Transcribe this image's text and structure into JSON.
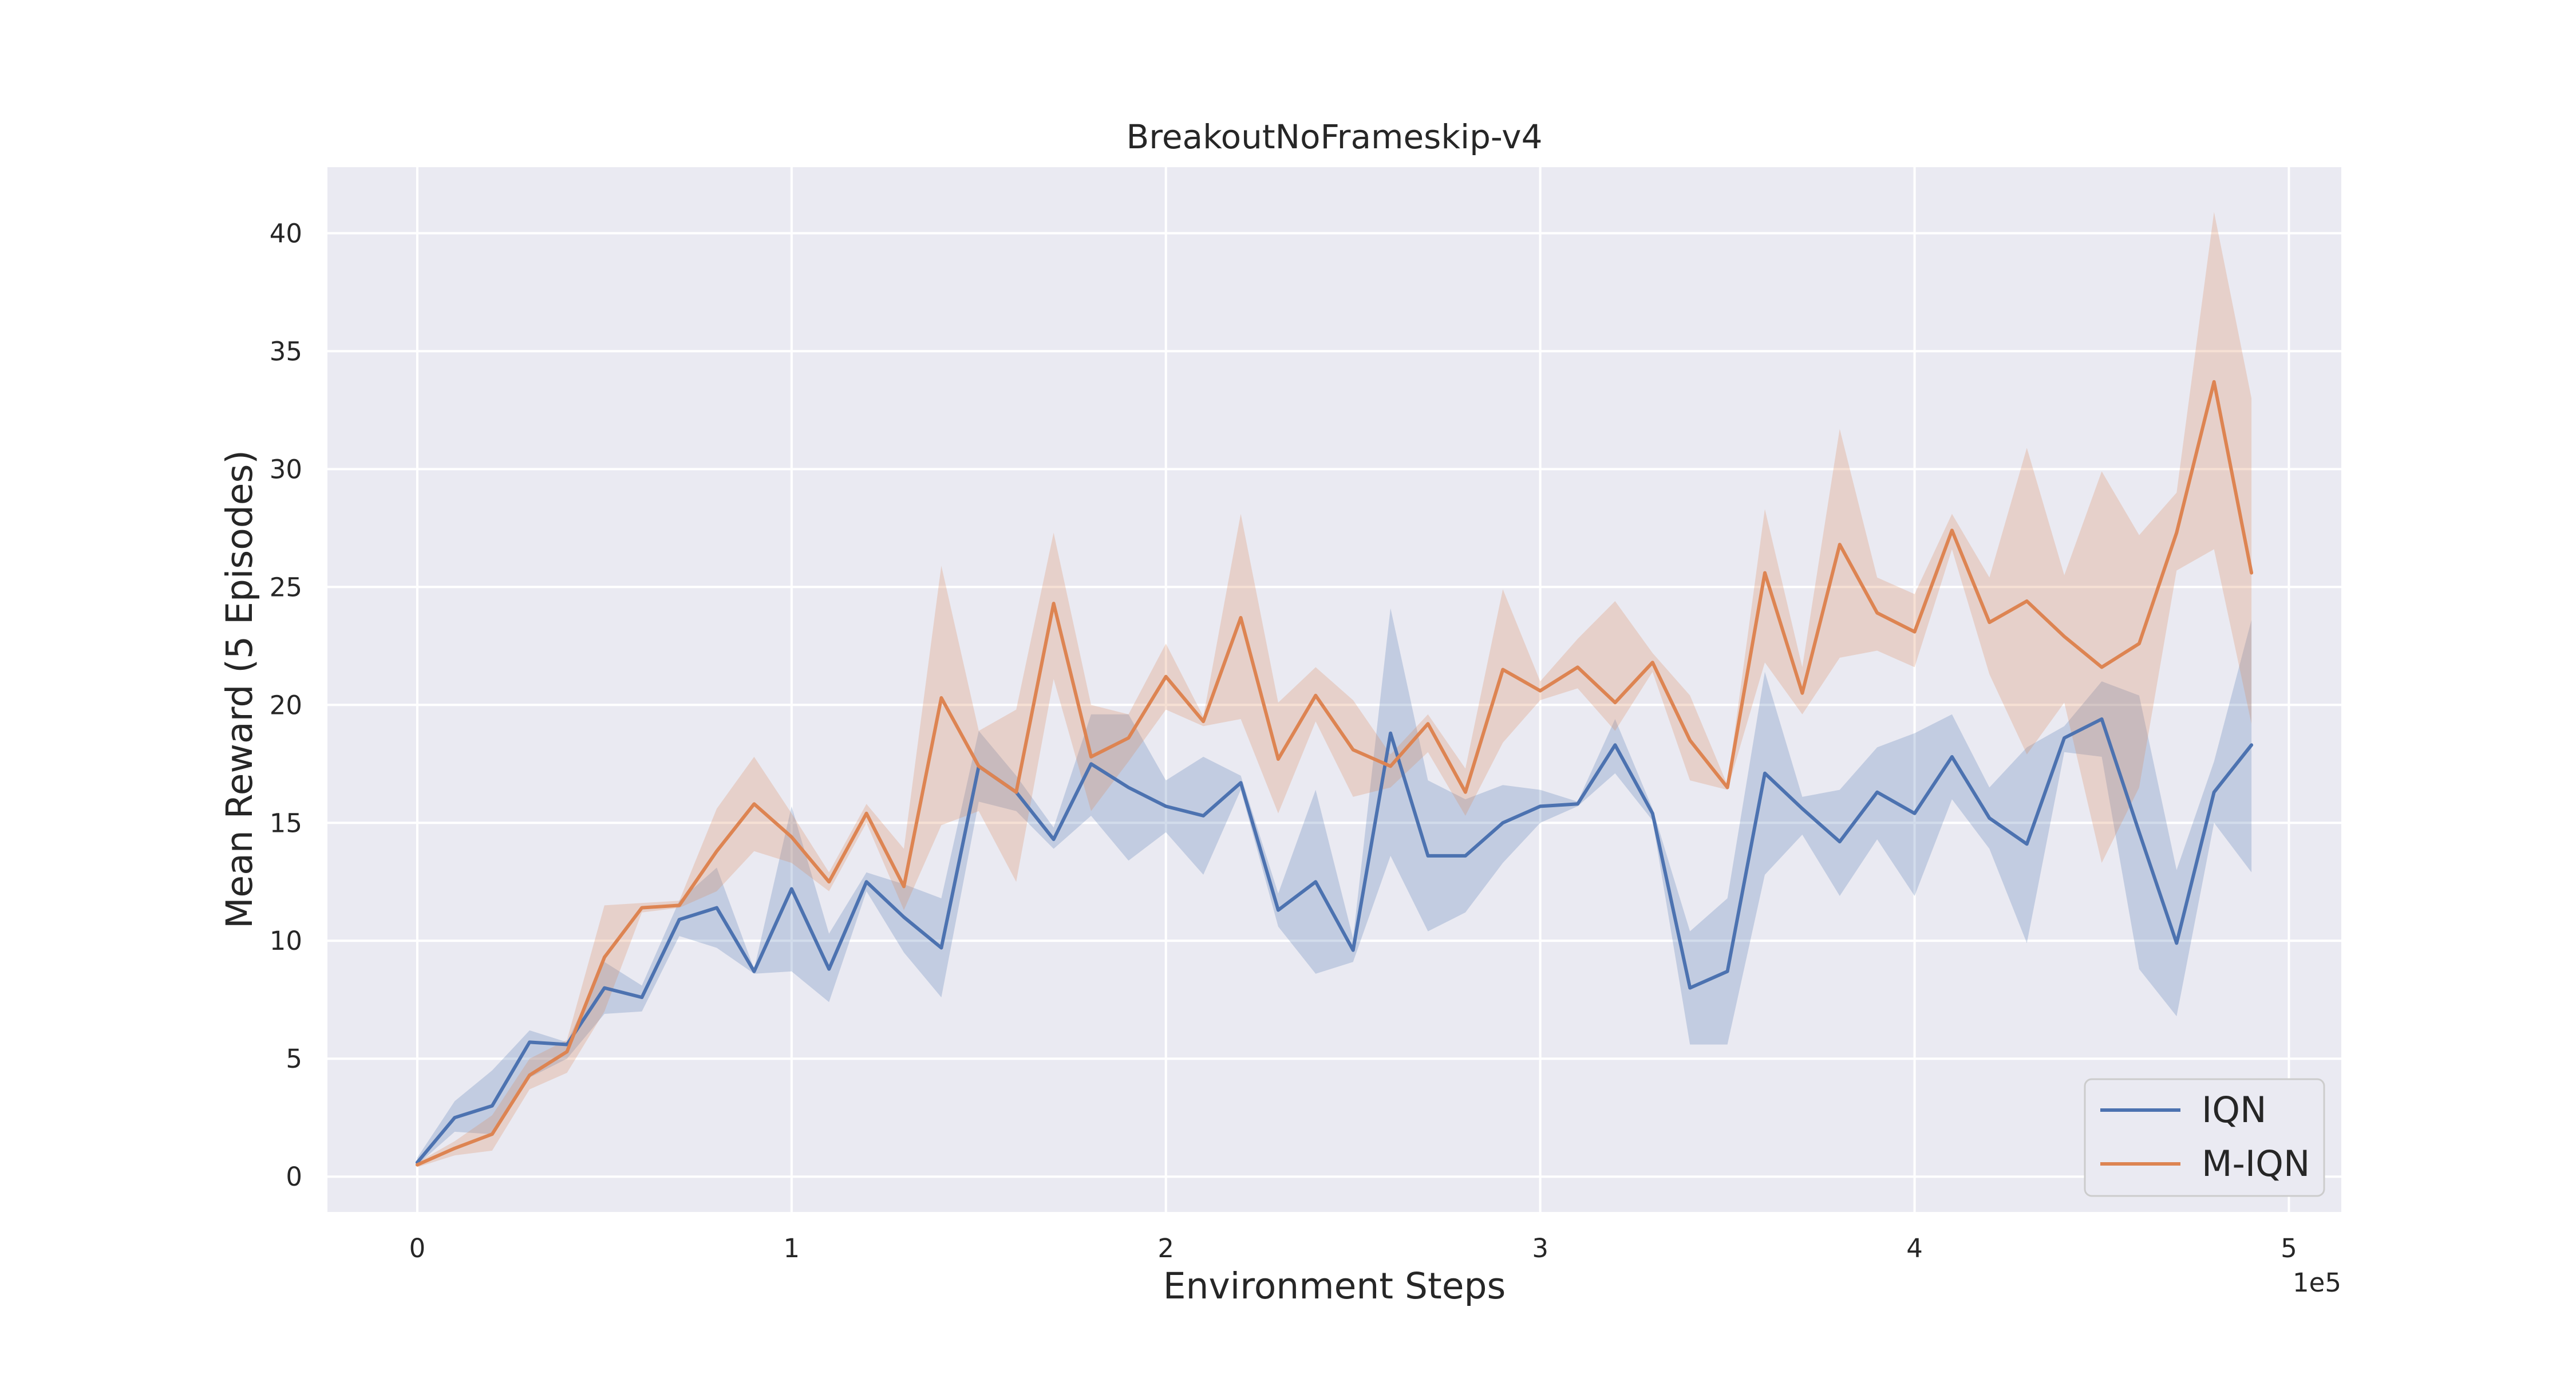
{
  "chart_data": {
    "type": "line",
    "title": "BreakoutNoFrameskip-v4",
    "xlabel": "Environment Steps",
    "ylabel": "Mean Reward (5 Episodes)",
    "x_offset_label": "1e5",
    "xlim": [
      -0.24,
      5.14
    ],
    "ylim": [
      -1.5,
      42.8
    ],
    "xticks": [
      0,
      1,
      2,
      3,
      4,
      5
    ],
    "xtick_labels": [
      "0",
      "1",
      "2",
      "3",
      "4",
      "5"
    ],
    "yticks": [
      0,
      5,
      10,
      15,
      20,
      25,
      30,
      35,
      40
    ],
    "ytick_labels": [
      "0",
      "5",
      "10",
      "15",
      "20",
      "25",
      "30",
      "35",
      "40"
    ],
    "grid": true,
    "legend_position": "lower-right",
    "background": "#eaeaf2",
    "x": [
      0,
      0.1,
      0.2,
      0.3,
      0.4,
      0.5,
      0.6,
      0.7,
      0.8,
      0.9,
      1.0,
      1.1,
      1.2,
      1.3,
      1.4,
      1.5,
      1.6,
      1.7,
      1.8,
      1.9,
      2.0,
      2.1,
      2.2,
      2.3,
      2.4,
      2.5,
      2.6,
      2.7,
      2.8,
      2.9,
      3.0,
      3.1,
      3.2,
      3.3,
      3.4,
      3.5,
      3.6,
      3.7,
      3.8,
      3.9,
      4.0,
      4.1,
      4.2,
      4.3,
      4.4,
      4.5,
      4.6,
      4.7,
      4.8,
      4.9
    ],
    "series": [
      {
        "name": "IQN",
        "color": "#4c72b0",
        "values": [
          0.6,
          2.5,
          3.0,
          5.7,
          5.6,
          8.0,
          7.6,
          10.9,
          11.4,
          8.7,
          12.2,
          8.8,
          12.5,
          11.0,
          9.7,
          17.4,
          16.3,
          14.3,
          17.5,
          16.5,
          15.7,
          15.3,
          16.7,
          11.3,
          12.5,
          9.6,
          18.8,
          13.6,
          13.6,
          15.0,
          15.7,
          15.8,
          18.3,
          15.4,
          8.0,
          8.7,
          17.1,
          15.6,
          14.2,
          16.3,
          15.4,
          17.8,
          15.2,
          14.1,
          18.6,
          19.4,
          14.6,
          9.9,
          16.3,
          18.3
        ],
        "lower": [
          0.5,
          1.9,
          1.8,
          4.2,
          5.0,
          6.9,
          7.0,
          10.2,
          9.7,
          8.6,
          8.7,
          7.4,
          12.1,
          9.5,
          7.6,
          15.9,
          15.5,
          13.9,
          15.3,
          13.4,
          14.6,
          12.8,
          16.4,
          10.6,
          8.6,
          9.1,
          13.6,
          10.4,
          11.2,
          13.3,
          15.0,
          15.7,
          17.1,
          15.1,
          5.6,
          5.6,
          12.8,
          14.5,
          11.9,
          14.3,
          11.9,
          16.0,
          13.9,
          9.9,
          18.0,
          17.8,
          8.8,
          6.8,
          15.0,
          12.9
        ],
        "upper": [
          0.8,
          3.2,
          4.5,
          6.2,
          5.7,
          9.1,
          8.1,
          11.7,
          13.1,
          8.8,
          15.7,
          10.3,
          12.9,
          12.4,
          11.8,
          18.9,
          17.0,
          14.8,
          19.6,
          19.6,
          16.8,
          17.8,
          17.0,
          12.0,
          16.4,
          10.1,
          24.1,
          16.8,
          16.0,
          16.6,
          16.4,
          15.9,
          19.4,
          15.6,
          10.4,
          11.8,
          21.4,
          16.1,
          16.4,
          18.2,
          18.8,
          19.6,
          16.5,
          18.2,
          19.1,
          21.0,
          20.4,
          13.0,
          17.6,
          23.6
        ]
      },
      {
        "name": "M-IQN",
        "color": "#dd8452",
        "values": [
          0.5,
          1.2,
          1.8,
          4.3,
          5.3,
          9.3,
          11.4,
          11.5,
          13.8,
          15.8,
          14.4,
          12.5,
          15.4,
          12.3,
          20.3,
          17.4,
          16.3,
          24.3,
          17.8,
          18.6,
          21.2,
          19.3,
          23.7,
          17.7,
          20.4,
          18.1,
          17.4,
          19.2,
          16.3,
          21.5,
          20.6,
          21.6,
          20.1,
          21.8,
          18.5,
          16.5,
          25.6,
          20.5,
          26.8,
          23.9,
          23.1,
          27.4,
          23.5,
          24.4,
          22.9,
          21.6,
          22.6,
          27.3,
          33.7,
          25.6
        ],
        "lower": [
          0.4,
          0.9,
          1.1,
          3.7,
          4.4,
          7.0,
          11.2,
          11.4,
          12.1,
          13.8,
          13.3,
          12.1,
          15.0,
          11.3,
          14.9,
          15.5,
          12.5,
          21.1,
          15.5,
          17.6,
          19.8,
          19.1,
          19.4,
          15.4,
          19.3,
          16.1,
          16.5,
          18.0,
          15.3,
          18.4,
          20.2,
          20.7,
          18.9,
          21.4,
          16.8,
          16.4,
          21.8,
          19.6,
          22.0,
          22.3,
          21.6,
          26.6,
          21.3,
          17.9,
          20.1,
          13.3,
          16.5,
          25.7,
          26.6,
          19.2
        ],
        "upper": [
          0.6,
          1.5,
          2.6,
          5.0,
          5.8,
          11.5,
          11.6,
          11.7,
          15.6,
          17.8,
          15.4,
          12.9,
          15.8,
          13.9,
          25.9,
          18.9,
          19.8,
          27.3,
          20.0,
          19.6,
          22.6,
          19.5,
          28.1,
          20.1,
          21.6,
          20.2,
          17.9,
          19.6,
          17.3,
          24.9,
          21.0,
          22.8,
          24.4,
          22.2,
          20.4,
          16.6,
          28.3,
          21.6,
          31.7,
          25.4,
          24.7,
          28.1,
          25.4,
          30.9,
          25.5,
          29.9,
          27.2,
          29.0,
          40.9,
          33.0
        ]
      }
    ]
  }
}
